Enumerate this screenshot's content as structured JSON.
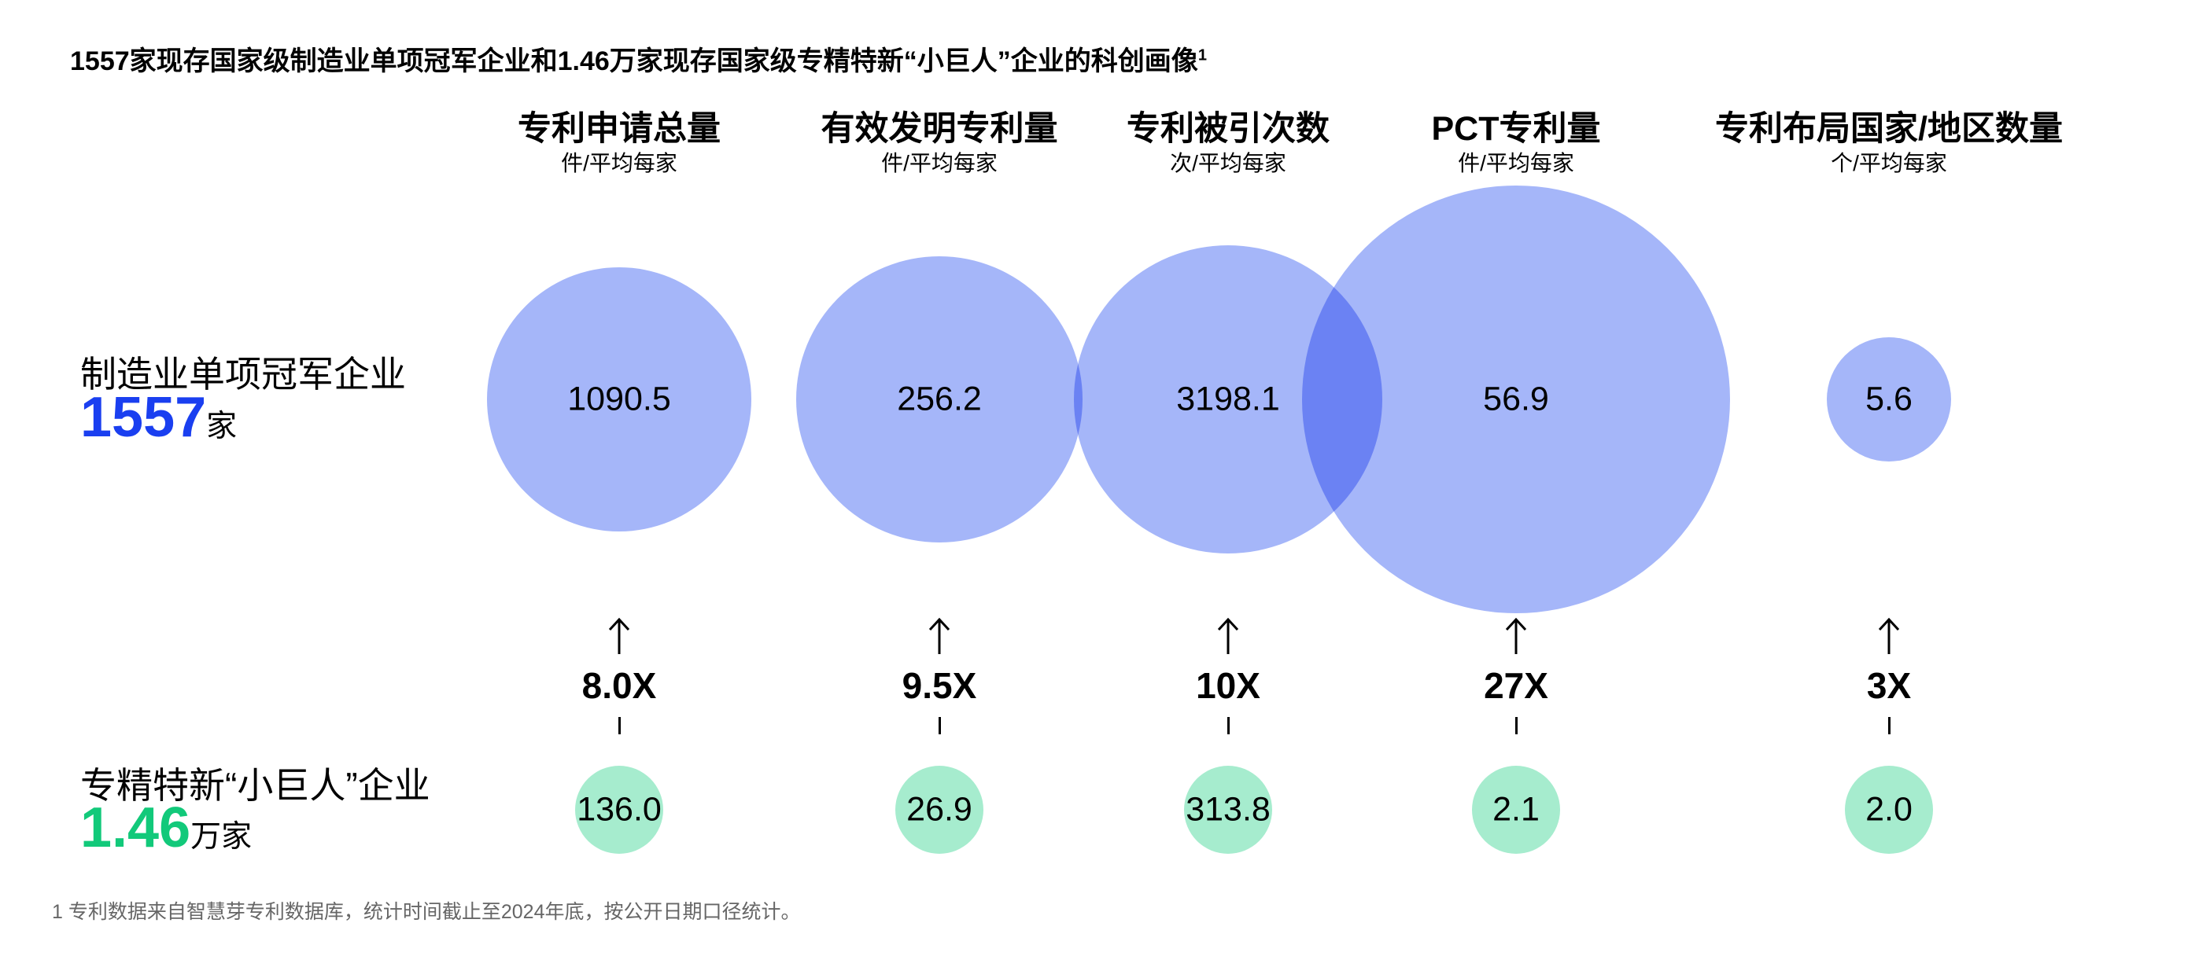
{
  "title": "1557家现存国家级制造业单项冠军企业和1.46万家现存国家级专精特新“小巨人”企业的科创画像",
  "title_sup": "1",
  "colors": {
    "blue_accent": "#1a3ff0",
    "green_accent": "#12c97a",
    "big_circle": "#a5b6f9",
    "small_circle": "#a6ecce"
  },
  "groups": {
    "champion": {
      "label": "制造业单项冠军企业",
      "count": "1557",
      "unit": "家"
    },
    "little_giant": {
      "label": "专精特新“小巨人”企业",
      "count": "1.46",
      "unit": "万家"
    }
  },
  "chart_data": {
    "type": "bubble",
    "title": "1557家现存国家级制造业单项冠军企业和1.46万家现存国家级专精特新“小巨人”企业的科创画像",
    "categories": [
      "专利申请总量",
      "有效发明专利量",
      "专利被引次数",
      "PCT专利量",
      "专利布局国家/地区数量"
    ],
    "units": [
      "件/平均每家",
      "件/平均每家",
      "次/平均每家",
      "件/平均每家",
      "个/平均每家"
    ],
    "series": [
      {
        "name": "制造业单项冠军企业",
        "values": [
          1090.5,
          256.2,
          3198.1,
          56.9,
          5.6
        ],
        "labels": [
          "1090.5",
          "256.2",
          "3198.1",
          "56.9",
          "5.6"
        ]
      },
      {
        "name": "专精特新“小巨人”企业",
        "values": [
          136.0,
          26.9,
          313.8,
          2.1,
          2.0
        ],
        "labels": [
          "136.0",
          "26.9",
          "313.8",
          "2.1",
          "2.0"
        ]
      }
    ],
    "multipliers": [
      "8.0X",
      "9.5X",
      "10X",
      "27X",
      "3X"
    ]
  },
  "footnote": "1 专利数据来自智慧芽专利数据库，统计时间截止至2024年底，按公开日期口径统计。"
}
